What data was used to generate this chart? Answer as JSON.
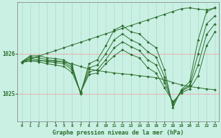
{
  "title": "Graphe pression niveau de la mer (hPa)",
  "background_color": "#caf0e4",
  "plot_bg_color": "#caf0e4",
  "grid_color_v": "#b0ddd0",
  "grid_color_h": "#f0a0a0",
  "line_color": "#2d6e2d",
  "marker_color": "#2d6e2d",
  "xlim": [
    -0.5,
    23.5
  ],
  "ylim": [
    1024.3,
    1027.3
  ],
  "yticks": [
    1025,
    1026
  ],
  "xticks": [
    0,
    1,
    2,
    3,
    4,
    5,
    6,
    7,
    8,
    9,
    10,
    11,
    12,
    13,
    14,
    15,
    16,
    17,
    18,
    19,
    20,
    21,
    22,
    23
  ],
  "series": [
    [
      1025.8,
      1025.95,
      1025.95,
      1025.9,
      1025.88,
      1025.85,
      1025.7,
      1025.0,
      1025.75,
      1025.85,
      1026.2,
      1026.6,
      1026.7,
      1026.55,
      1026.5,
      1026.3,
      1026.15,
      1025.6,
      1024.65,
      1025.1,
      1025.3,
      1026.35,
      1027.05,
      1027.15
    ],
    [
      1025.8,
      1025.92,
      1025.9,
      1025.85,
      1025.83,
      1025.8,
      1025.65,
      1025.02,
      1025.65,
      1025.72,
      1026.0,
      1026.35,
      1026.5,
      1026.35,
      1026.25,
      1026.05,
      1025.92,
      1025.42,
      1024.72,
      1025.08,
      1025.22,
      1026.0,
      1026.75,
      1026.95
    ],
    [
      1025.8,
      1025.88,
      1025.85,
      1025.8,
      1025.78,
      1025.75,
      1025.6,
      1025.04,
      1025.55,
      1025.6,
      1025.85,
      1026.15,
      1026.3,
      1026.18,
      1026.08,
      1025.85,
      1025.72,
      1025.28,
      1024.76,
      1025.06,
      1025.18,
      1025.72,
      1026.48,
      1026.75
    ],
    [
      1025.78,
      1025.82,
      1025.8,
      1025.75,
      1025.72,
      1025.68,
      1025.53,
      1025.03,
      1025.48,
      1025.52,
      1025.75,
      1025.95,
      1026.1,
      1025.98,
      1025.9,
      1025.65,
      1025.52,
      1025.15,
      1024.8,
      1025.02,
      1025.12,
      1025.45,
      1026.2,
      1026.55
    ]
  ],
  "straight_series": [
    [
      1025.8,
      1025.87,
      1025.94,
      1026.01,
      1026.08,
      1026.15,
      1026.22,
      1026.29,
      1026.36,
      1026.43,
      1026.5,
      1026.57,
      1026.64,
      1026.71,
      1026.78,
      1026.85,
      1026.92,
      1026.99,
      1027.06,
      1027.13,
      1027.15,
      1027.12,
      1027.1,
      1027.15
    ],
    [
      1025.8,
      1025.83,
      1025.83,
      1025.82,
      1025.81,
      1025.8,
      1025.75,
      1025.68,
      1025.62,
      1025.58,
      1025.55,
      1025.52,
      1025.5,
      1025.48,
      1025.45,
      1025.43,
      1025.4,
      1025.35,
      1025.28,
      1025.22,
      1025.18,
      1025.15,
      1025.12,
      1025.1
    ]
  ]
}
